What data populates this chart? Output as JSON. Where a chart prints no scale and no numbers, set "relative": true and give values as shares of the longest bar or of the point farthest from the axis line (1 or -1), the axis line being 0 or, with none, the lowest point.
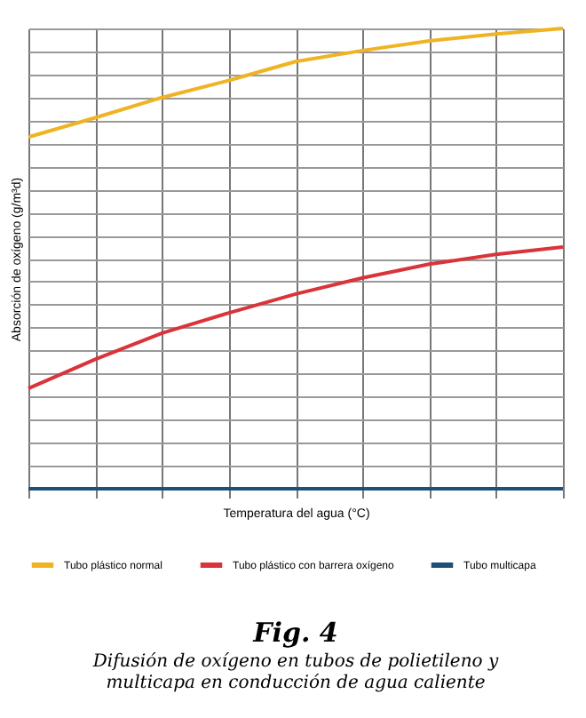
{
  "chart_data": {
    "type": "line",
    "title": "Fig. 4",
    "subtitle": "Difusión de oxígeno en tubos de polietileno y multicapa en conducción de agua caliente",
    "xlabel": "Temperatura del agua (°C)",
    "ylabel": "Absorción de oxígeno (g/m³d)",
    "relative": true,
    "tick_labels": false,
    "grid": true,
    "legend": "bottom",
    "marker": "none",
    "line_style": "solid",
    "categories": [
      null,
      null,
      null,
      null,
      null,
      null,
      null,
      null,
      null
    ],
    "series": [
      {
        "name": "Tubo plástico normal",
        "color": "#f0b323",
        "values": [
          0.764,
          0.806,
          0.85,
          0.887,
          0.928,
          0.952,
          0.973,
          0.988,
          1
        ]
      },
      {
        "name": "Tubo plástico con barrera oxígeno",
        "color": "#d9343a",
        "values": [
          0.218,
          0.281,
          0.338,
          0.382,
          0.423,
          0.458,
          0.488,
          0.509,
          0.525
        ]
      },
      {
        "name": "Tubo multicapa",
        "color": "#1f4e79",
        "values": [
          0,
          0,
          0,
          0,
          0,
          0,
          0,
          0,
          0
        ]
      }
    ]
  }
}
